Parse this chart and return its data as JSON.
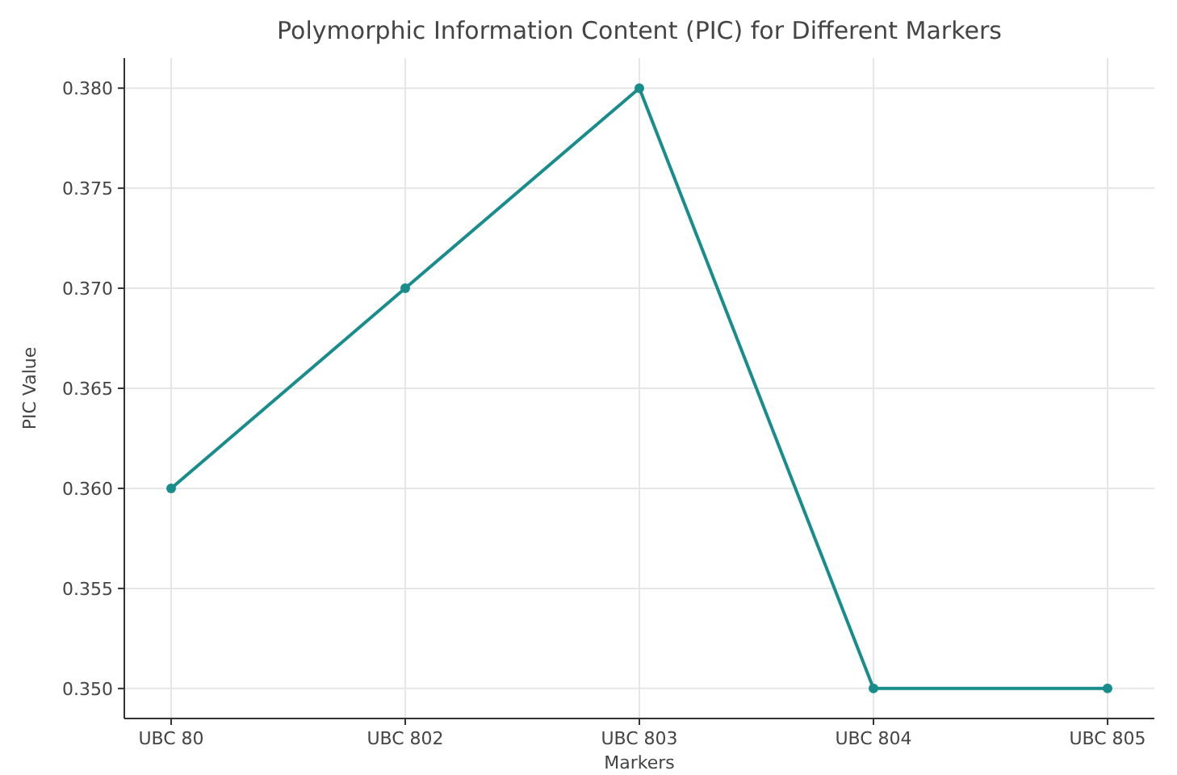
{
  "chart_data": {
    "type": "line",
    "title": "Polymorphic Information Content (PIC) for Different Markers",
    "xlabel": "Markers",
    "ylabel": "PIC Value",
    "categories": [
      "UBC 80",
      "UBC 802",
      "UBC 803",
      "UBC 804",
      "UBC 805"
    ],
    "series": [
      {
        "color": "#198c8c",
        "values": [
          0.36,
          0.37,
          0.38,
          0.35,
          0.35
        ]
      }
    ],
    "ylim": [
      0.3485,
      0.3815
    ],
    "yticks": [
      {
        "value": 0.35,
        "label": "0.350"
      },
      {
        "value": 0.355,
        "label": "0.355"
      },
      {
        "value": 0.36,
        "label": "0.360"
      },
      {
        "value": 0.365,
        "label": "0.365"
      },
      {
        "value": 0.37,
        "label": "0.370"
      },
      {
        "value": 0.375,
        "label": "0.375"
      },
      {
        "value": 0.38,
        "label": "0.380"
      }
    ],
    "grid": true,
    "marker": "circle",
    "line_style": "solid"
  }
}
